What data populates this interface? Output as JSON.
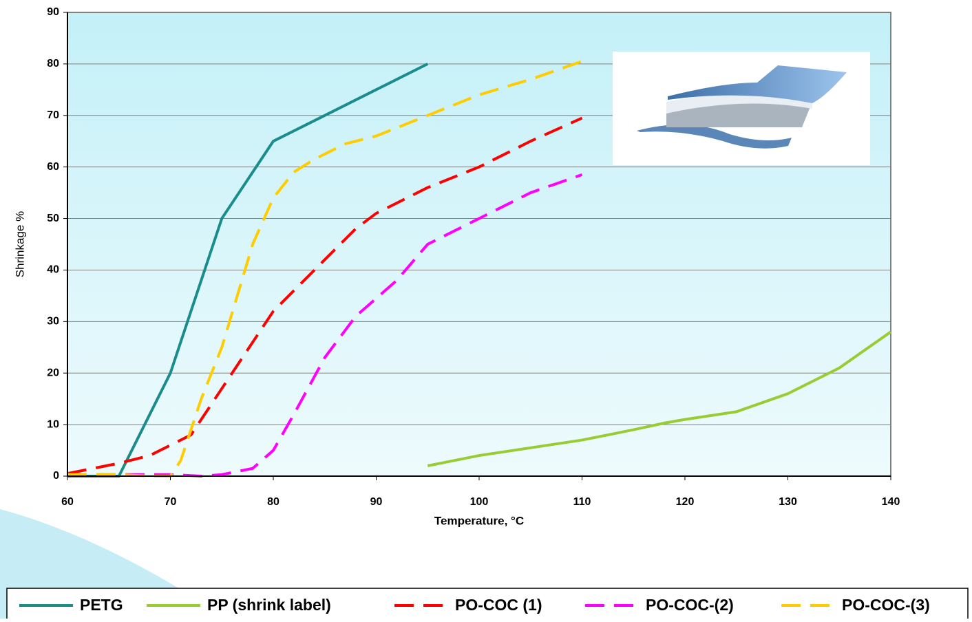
{
  "chart_data": {
    "type": "line",
    "x_label": "Temperature, °C",
    "y_label": "Shrinkage %",
    "xlim": [
      60,
      140
    ],
    "xticks": [
      60,
      70,
      80,
      90,
      100,
      110,
      120,
      130,
      140
    ],
    "ylim": [
      0,
      90
    ],
    "yticks": [
      0,
      10,
      20,
      30,
      40,
      50,
      60,
      70,
      80,
      90
    ],
    "grid": true,
    "legend": "bottom",
    "series": [
      {
        "name": "PETG",
        "color": "#1a8c8c",
        "dashed": false,
        "x": [
          60,
          65,
          70,
          75,
          80,
          85,
          90,
          95
        ],
        "values": [
          0,
          0,
          20,
          50,
          65,
          70,
          75,
          80
        ]
      },
      {
        "name": "PP (shrink label)",
        "color": "#99cc33",
        "dashed": false,
        "x": [
          95,
          100,
          105,
          110,
          115,
          118,
          120,
          125,
          130,
          135,
          140
        ],
        "values": [
          2,
          4,
          5.5,
          7,
          9,
          10.3,
          11,
          12.5,
          16,
          21,
          28
        ]
      },
      {
        "name": "PO-COC (1)",
        "color": "#ff0000",
        "dashed": true,
        "x": [
          60,
          65,
          68,
          70,
          72,
          75,
          80,
          85,
          88,
          90,
          95,
          100,
          105,
          110
        ],
        "values": [
          0.5,
          2.5,
          4,
          6,
          8,
          17,
          32,
          42,
          48,
          51,
          56,
          60,
          65,
          69.5
        ]
      },
      {
        "name": "PO-COC-(2)",
        "color": "#ff00ff",
        "dashed": true,
        "x": [
          60,
          65,
          70,
          73,
          75,
          78,
          80,
          82,
          85,
          88,
          92,
          95,
          100,
          105,
          110
        ],
        "values": [
          0.3,
          0.3,
          0.3,
          0,
          0.3,
          1.5,
          5,
          12,
          23,
          31,
          38,
          45,
          50,
          55,
          58.5
        ]
      },
      {
        "name": "PO-COC-(3)",
        "color": "#ffcc00",
        "dashed": true,
        "x": [
          60,
          65,
          68,
          70,
          71,
          73,
          75,
          78,
          80,
          82,
          84,
          87,
          90,
          95,
          100,
          105,
          110
        ],
        "values": [
          0.3,
          0.3,
          0,
          0,
          3,
          15,
          25,
          45,
          54,
          59,
          61.5,
          64.5,
          66,
          70,
          74,
          77,
          80.5
        ]
      }
    ]
  }
}
